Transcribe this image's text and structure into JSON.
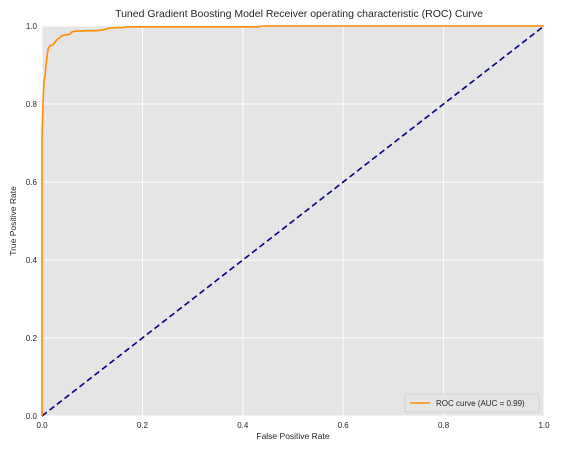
{
  "chart_data": {
    "type": "line",
    "title": "Tuned Gradient Boosting Model Receiver operating characteristic (ROC) Curve",
    "xlabel": "False Positive Rate",
    "ylabel": "True Positive Rate",
    "xlim": [
      0.0,
      1.0
    ],
    "ylim": [
      0.0,
      1.0
    ],
    "xticks": [
      "0.0",
      "0.2",
      "0.4",
      "0.6",
      "0.8",
      "1.0"
    ],
    "yticks": [
      "0.0",
      "0.2",
      "0.4",
      "0.6",
      "0.8",
      "1.0"
    ],
    "grid": true,
    "legend_position": "lower-right",
    "background_color": "#e5e5e5",
    "series": [
      {
        "name": "ROC curve (AUC = 0.99)",
        "color": "#ff8c00",
        "line_style": "solid",
        "x": [
          0.0,
          0.0,
          0.002,
          0.004,
          0.006,
          0.008,
          0.01,
          0.012,
          0.016,
          0.02,
          0.024,
          0.03,
          0.035,
          0.04,
          0.045,
          0.05,
          0.055,
          0.06,
          0.065,
          0.07,
          0.08,
          0.09,
          0.1,
          0.11,
          0.12,
          0.125,
          0.13,
          0.135,
          0.14,
          0.15,
          0.16,
          0.17,
          0.2,
          0.3,
          0.43,
          0.44,
          0.6,
          0.8,
          1.0
        ],
        "y": [
          0.0,
          0.72,
          0.8,
          0.86,
          0.87,
          0.9,
          0.92,
          0.94,
          0.95,
          0.95,
          0.955,
          0.965,
          0.97,
          0.975,
          0.977,
          0.977,
          0.979,
          0.985,
          0.986,
          0.987,
          0.987,
          0.988,
          0.988,
          0.988,
          0.99,
          0.991,
          0.993,
          0.995,
          0.995,
          0.996,
          0.996,
          0.998,
          0.998,
          0.998,
          0.998,
          1.0,
          1.0,
          1.0,
          1.0
        ]
      },
      {
        "name": "",
        "color": "#000080",
        "line_style": "dashed",
        "x": [
          0.0,
          1.0
        ],
        "y": [
          0.0,
          1.0
        ]
      }
    ]
  }
}
